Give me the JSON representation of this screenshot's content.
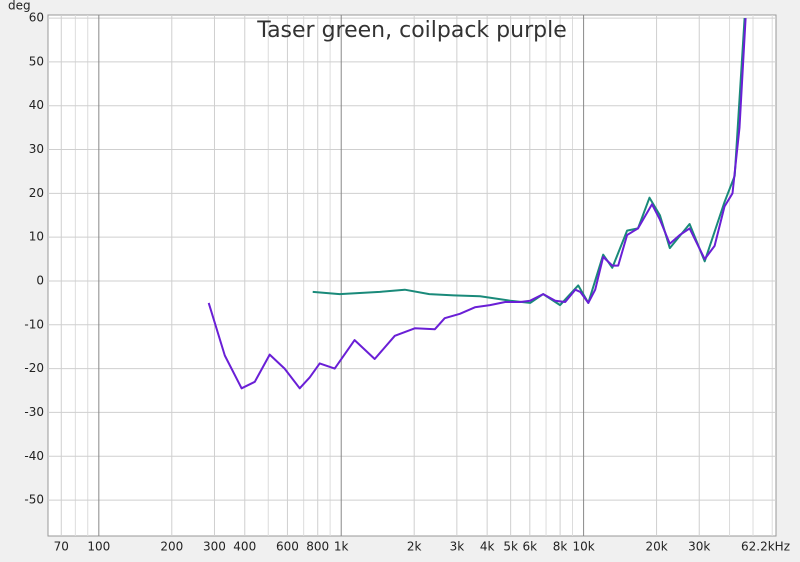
{
  "chart_data": {
    "type": "line",
    "title": "Taser green, coilpack purple",
    "y_label": "deg",
    "log_x": true,
    "grid": true,
    "xlim": [
      61.7,
      62200
    ],
    "ylim": [
      -58.2,
      60.7
    ],
    "xticks": [
      70,
      100,
      200,
      300,
      400,
      600,
      800,
      {
        "value": 1000,
        "label": "1k"
      },
      {
        "value": 2000,
        "label": "2k"
      },
      {
        "value": 3000,
        "label": "3k"
      },
      {
        "value": 4000,
        "label": "4k"
      },
      {
        "value": 5000,
        "label": "5k"
      },
      {
        "value": 6000,
        "label": "6k"
      },
      {
        "value": 8000,
        "label": "8k"
      },
      {
        "value": 10000,
        "label": "10k"
      },
      {
        "value": 20000,
        "label": "20k"
      },
      {
        "value": 30000,
        "label": "30k"
      },
      {
        "value": 62200,
        "label": "62.2kHz"
      }
    ],
    "xminor": [
      80,
      90,
      500,
      700,
      900,
      7000,
      9000,
      40000,
      50000,
      60000
    ],
    "yticks": [
      -50,
      -40,
      -30,
      -20,
      -10,
      0,
      10,
      20,
      30,
      40,
      50,
      60
    ],
    "series": [
      {
        "name": "Taser",
        "color": "#1a8a7a",
        "x": [
          763,
          985,
          1443,
          1830,
          2309,
          2915,
          3740,
          4980,
          6020,
          6810,
          8000,
          9500,
          10460,
          12050,
          13130,
          15120,
          16770,
          18700,
          20650,
          22680,
          27380,
          31590,
          38130,
          42000,
          46150
        ],
        "values": [
          -2.5,
          -3,
          -2.5,
          -2,
          -3,
          -3.3,
          -3.5,
          -4.5,
          -5,
          -3,
          -5.5,
          -1,
          -5,
          6,
          3,
          11.5,
          12,
          19,
          15,
          7.5,
          13,
          4.5,
          18,
          24,
          60
        ]
      },
      {
        "name": "coilpack",
        "color": "#6a1fd6",
        "x": [
          284,
          331,
          388,
          440,
          507,
          584,
          674,
          741,
          815,
          940,
          1136,
          1374,
          1664,
          2012,
          2435,
          2673,
          3088,
          3560,
          4110,
          4750,
          5480,
          6020,
          6810,
          7640,
          8400,
          9240,
          9690,
          10460,
          11170,
          12050,
          13130,
          13890,
          15120,
          16770,
          19150,
          20650,
          22680,
          24930,
          27380,
          31590,
          34720,
          38130,
          41150,
          43990,
          46580
        ],
        "values": [
          -5,
          -17,
          -24.5,
          -23,
          -16.8,
          -20,
          -24.5,
          -22,
          -18.8,
          -20,
          -13.5,
          -17.8,
          -12.5,
          -10.8,
          -11,
          -8.5,
          -7.5,
          -6,
          -5.5,
          -4.8,
          -4.8,
          -4.5,
          -3,
          -4.5,
          -4.8,
          -2,
          -2.5,
          -5,
          -2,
          5.5,
          3.5,
          3.5,
          10.5,
          12,
          17.5,
          14,
          8.5,
          10.5,
          12,
          5,
          8,
          17,
          20,
          35,
          60
        ]
      }
    ]
  }
}
